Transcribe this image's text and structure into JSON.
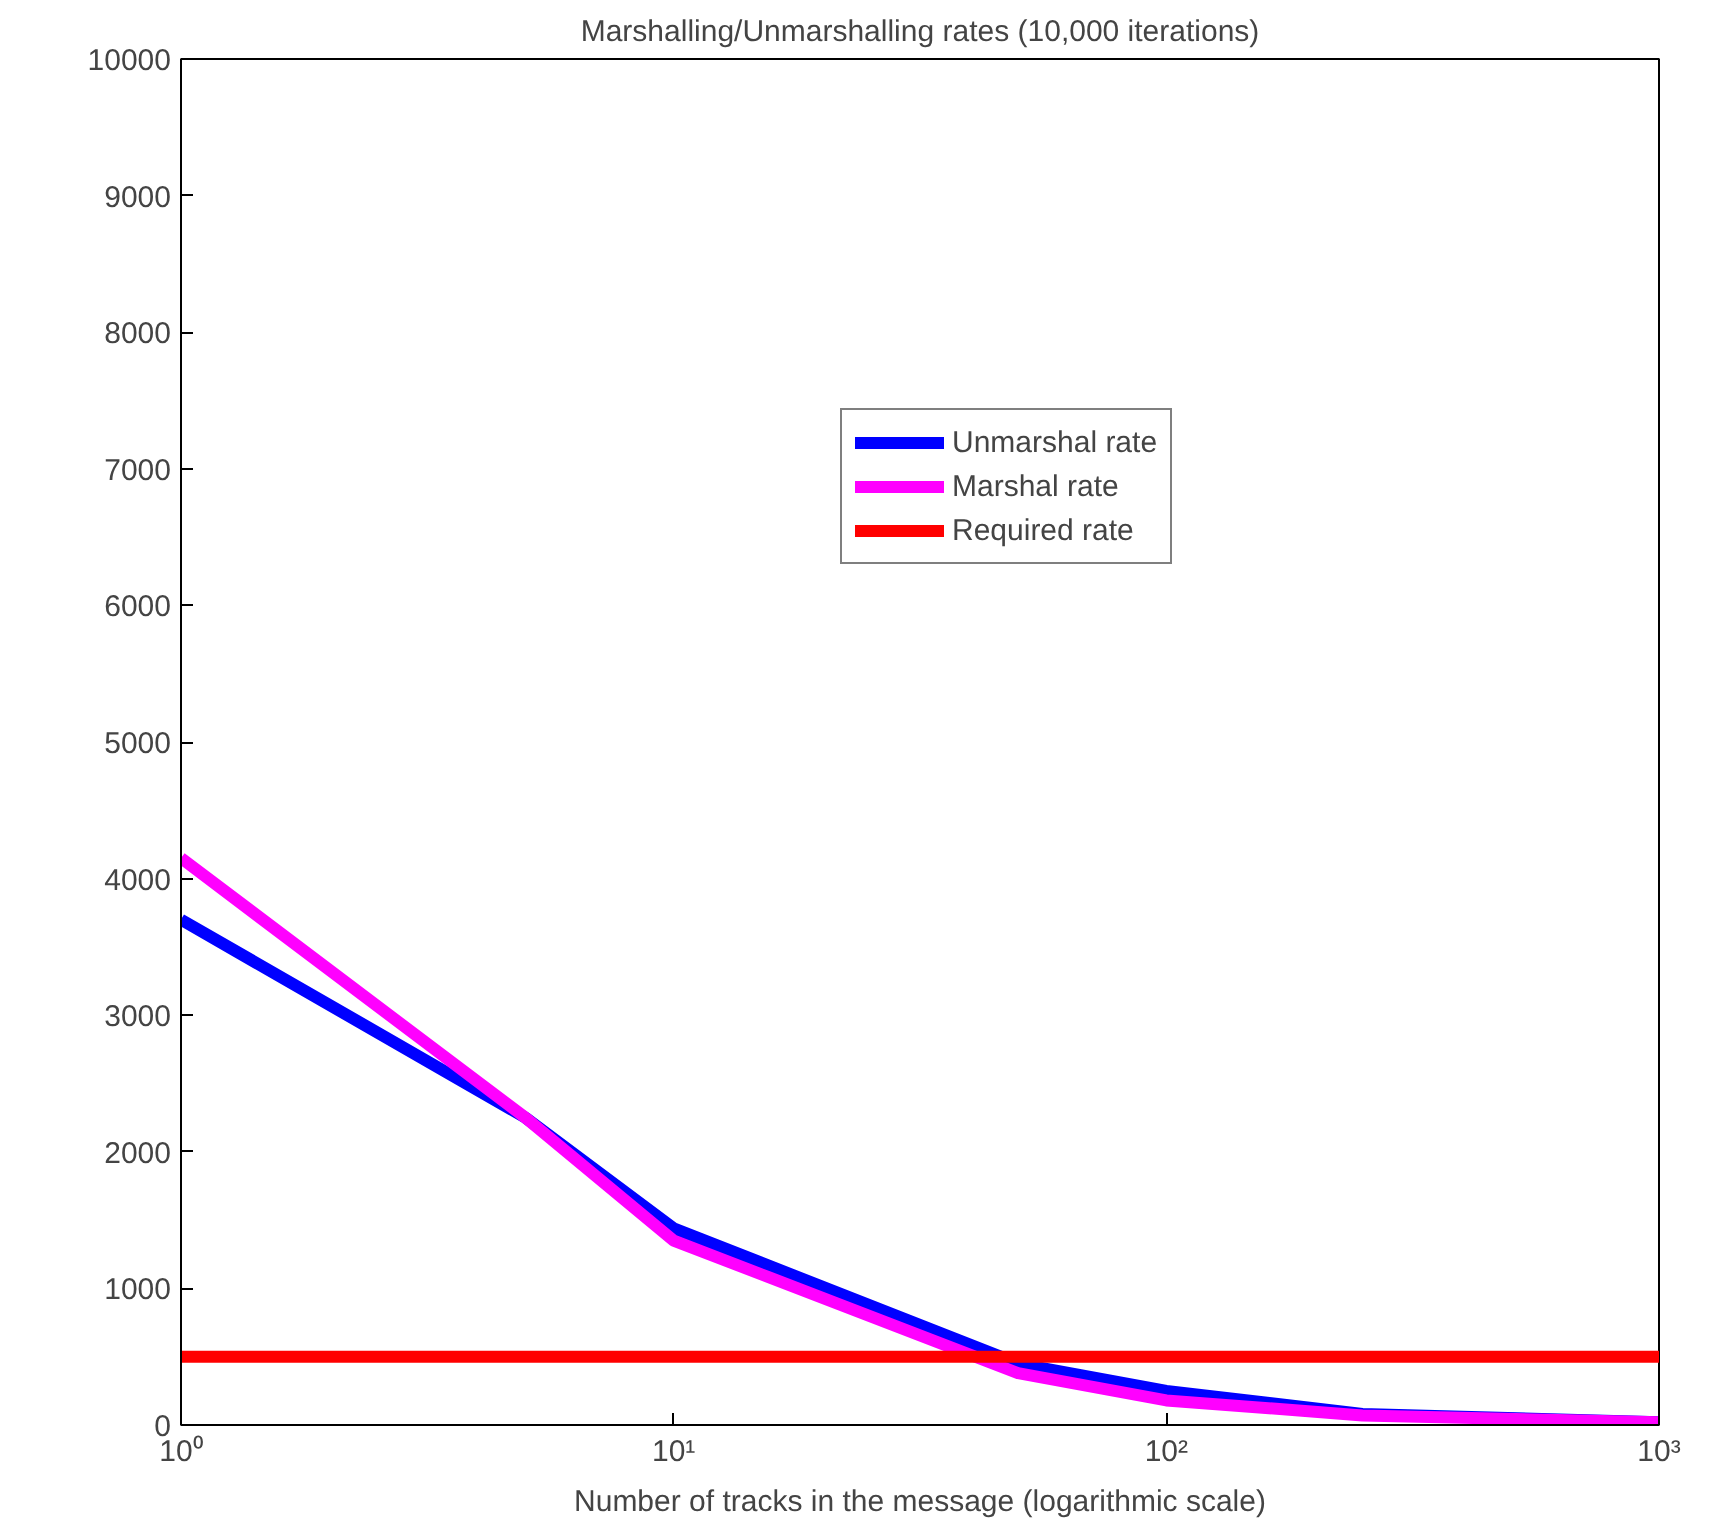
{
  "chart_data": {
    "type": "line",
    "title": "Marshalling/Unmarshalling rates (10,000 iterations)",
    "xlabel": "Number of tracks in the message (logarithmic scale)",
    "log": "x",
    "xlim": [
      1,
      1000
    ],
    "ylim": [
      0,
      10000
    ],
    "xticks": [
      {
        "value": 1,
        "label": "10⁰"
      },
      {
        "value": 10,
        "label": "10¹"
      },
      {
        "value": 100,
        "label": "10²"
      },
      {
        "value": 1000,
        "label": "10³"
      }
    ],
    "yticks": [
      0,
      1000,
      2000,
      3000,
      4000,
      5000,
      6000,
      7000,
      8000,
      9000,
      10000
    ],
    "grid": false,
    "legend": "top right",
    "marker": "none",
    "line_style": "solid",
    "series": [
      {
        "name": "Unmarshal rate",
        "color": "#0000ff",
        "x": [
          1,
          5,
          10,
          50,
          100,
          250,
          1000
        ],
        "values": [
          3700,
          2250,
          1440,
          450,
          250,
          80,
          20
        ]
      },
      {
        "name": "Marshal rate",
        "color": "#ff00ff",
        "x": [
          1,
          5,
          10,
          50,
          100,
          250,
          1000
        ],
        "values": [
          4150,
          2250,
          1350,
          380,
          180,
          70,
          20
        ]
      },
      {
        "name": "Required rate",
        "color": "#ff0000",
        "x": [
          1,
          1000
        ],
        "values": [
          500,
          500
        ]
      }
    ]
  }
}
